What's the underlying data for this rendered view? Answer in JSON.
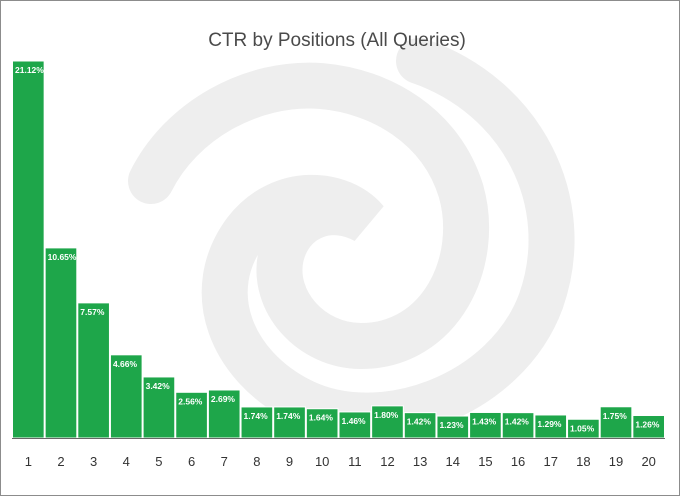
{
  "chart_data": {
    "type": "bar",
    "title": "CTR by Positions (All Queries)",
    "categories": [
      "1",
      "2",
      "3",
      "4",
      "5",
      "6",
      "7",
      "8",
      "9",
      "10",
      "11",
      "12",
      "13",
      "14",
      "15",
      "16",
      "17",
      "18",
      "19",
      "20"
    ],
    "values": [
      21.12,
      10.65,
      7.57,
      4.66,
      3.42,
      2.56,
      2.69,
      1.74,
      1.74,
      1.64,
      1.46,
      1.8,
      1.42,
      1.23,
      1.43,
      1.42,
      1.29,
      1.05,
      1.75,
      1.26
    ],
    "data_labels": [
      "21.12%",
      "10.65%",
      "7.57%",
      "4.66%",
      "3.42%",
      "2.56%",
      "2.69%",
      "1.74%",
      "1.74%",
      "1.64%",
      "1.46%",
      "1.80%",
      "1.42%",
      "1.23%",
      "1.43%",
      "1.42%",
      "1.29%",
      "1.05%",
      "1.75%",
      "1.26%"
    ],
    "xlabel": "",
    "ylabel": "",
    "ylim": [
      0,
      21.12
    ],
    "grid": false,
    "legend": "none",
    "colors": {
      "bar": "#1ea64a",
      "bar_outline": "#ffffff",
      "watermark": "#eeeeee",
      "axis": "#666666"
    }
  }
}
